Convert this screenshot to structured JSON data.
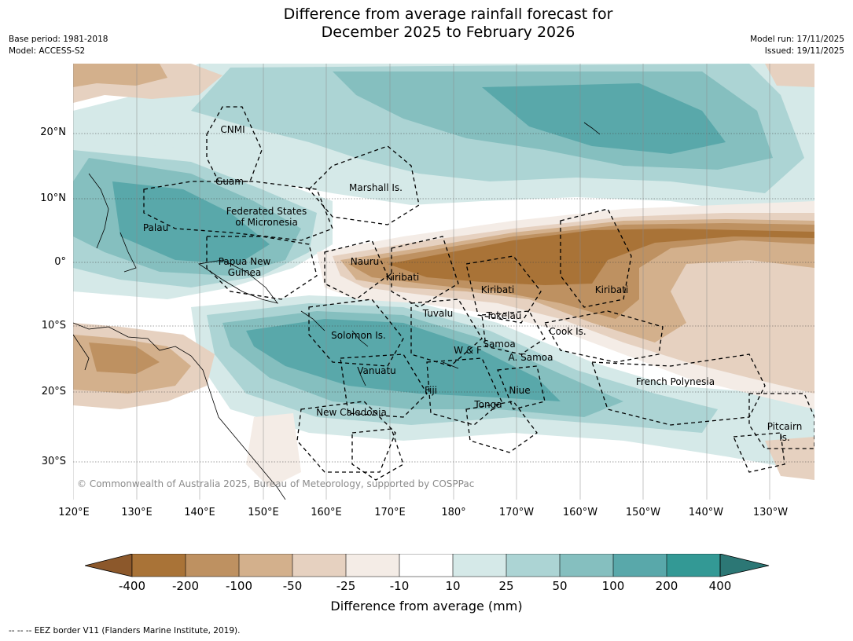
{
  "title_line1": "Difference from average rainfall forecast for",
  "title_line2": "December 2025 to February 2026",
  "meta": {
    "base_period": "Base period: 1981-2018",
    "model": "Model: ACCESS-S2",
    "model_run": "Model run: 17/11/2025",
    "issued": "Issued: 19/11/2025"
  },
  "map": {
    "lat_labels": [
      "20°N",
      "10°N",
      "0°",
      "10°S",
      "20°S",
      "30°S"
    ],
    "lon_labels": [
      "120°E",
      "130°E",
      "140°E",
      "150°E",
      "160°E",
      "170°E",
      "180°",
      "170°W",
      "160°W",
      "150°W",
      "140°W",
      "130°W"
    ],
    "regions": {
      "cnmi": "CNMI",
      "guam": "Guam",
      "marshall": "Marshall Is.",
      "fsm_1": "Federated States",
      "fsm_2": "of Micronesia",
      "palau": "Palau",
      "png_1": "Papua New",
      "png_2": "Guinea",
      "nauru": "Nauru",
      "kiribati_w": "Kiribati",
      "kiribati_c": "Kiribati",
      "kiribati_e": "Kiribati",
      "tuvalu": "Tuvalu",
      "tokelau": "Tokelau",
      "cook": "Cook Is.",
      "solomon": "Solomon Is.",
      "samoa": "Samoa",
      "wallis": "W & F",
      "american_samoa": "A. Samoa",
      "vanuatu": "Vanuatu",
      "fiji": "Fiji",
      "niue": "Niue",
      "tonga": "Tonga",
      "new_caledonia": "New Caledonia",
      "french_polynesia": "French Polynesia",
      "pitcairn_1": "Pitcairn",
      "pitcairn_2": "Is."
    },
    "copyright": "© Commonwealth of Australia 2025, Bureau of Meteorology, supported by COSPPac"
  },
  "colorbar": {
    "ticks": [
      "-400",
      "-200",
      "-100",
      "-50",
      "-25",
      "-10",
      "10",
      "25",
      "50",
      "100",
      "200",
      "400"
    ],
    "colors": {
      "under": "#8c582b",
      "c1": "#a97337",
      "c2": "#be9161",
      "c3": "#d3b08c",
      "c4": "#e6d1c0",
      "c5": "#f4ece6",
      "c6": "#ffffff",
      "c7": "#d5e9e8",
      "c8": "#acd4d4",
      "c9": "#85bfbf",
      "c10": "#59a8aa",
      "c11": "#339995",
      "over": "#2c7775"
    },
    "label": "Difference from average (mm)"
  },
  "footnote": "-- -- -- EEZ border V11 (Flanders Marine Institute, 2019)."
}
